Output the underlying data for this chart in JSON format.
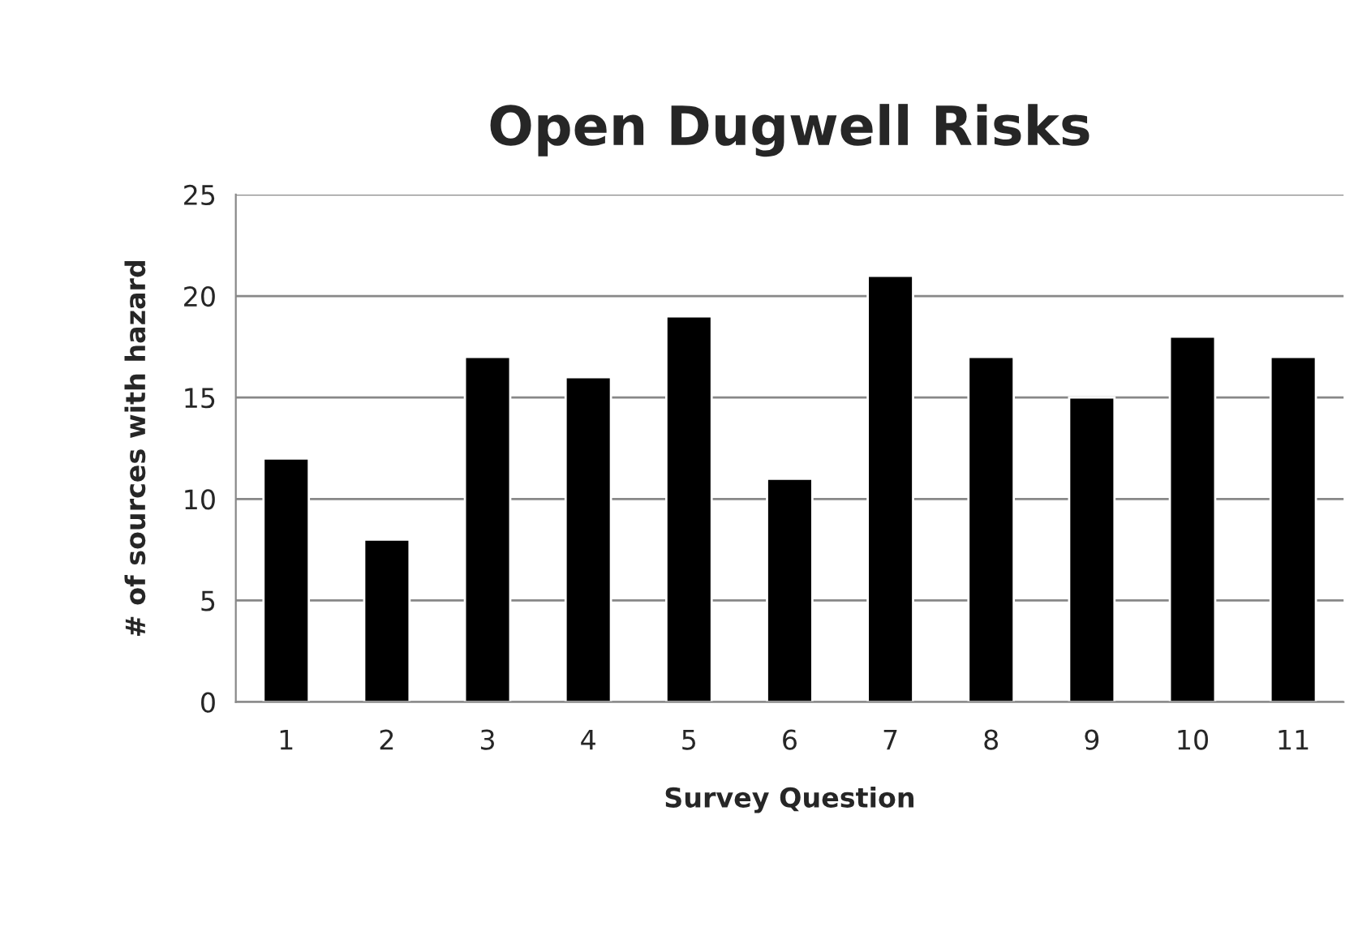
{
  "chart_data": {
    "type": "bar",
    "title": "Open Dugwell Risks",
    "xlabel": "Survey Question",
    "ylabel": "# of sources with hazard",
    "categories": [
      "1",
      "2",
      "3",
      "4",
      "5",
      "6",
      "7",
      "8",
      "9",
      "10",
      "11"
    ],
    "values": [
      12,
      8,
      17,
      16,
      19,
      11,
      21,
      17,
      15,
      18,
      17
    ],
    "color": "#000000",
    "ylim": [
      0,
      25
    ],
    "yticks": [
      0,
      5,
      10,
      15,
      20,
      25
    ],
    "grid": "y",
    "legend": false
  }
}
